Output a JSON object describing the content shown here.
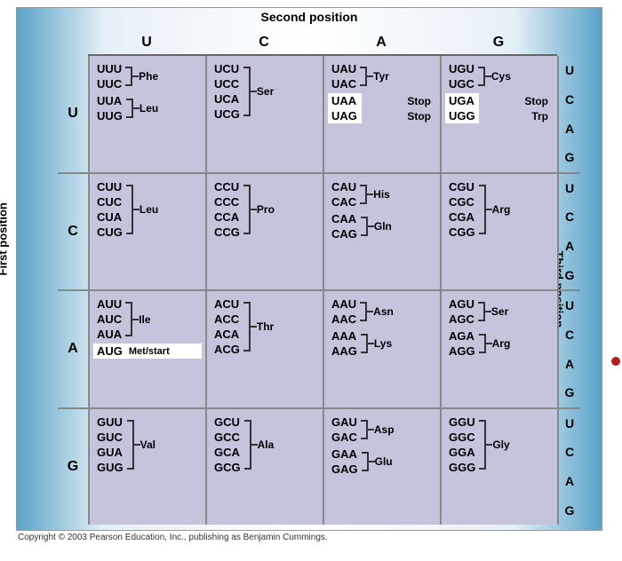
{
  "labels": {
    "top": "Second position",
    "left": "First position",
    "right": "Third position",
    "cols": [
      "U",
      "C",
      "A",
      "G"
    ],
    "rows": [
      "U",
      "C",
      "A",
      "G"
    ],
    "third": [
      "U",
      "C",
      "A",
      "G"
    ]
  },
  "table": {
    "U": {
      "U": [
        {
          "codons": [
            "UUU",
            "UUC"
          ],
          "aa": "Phe",
          "hl": []
        },
        {
          "codons": [
            "UUA",
            "UUG"
          ],
          "aa": "Leu",
          "hl": []
        }
      ],
      "C": [
        {
          "codons": [
            "UCU",
            "UCC",
            "UCA",
            "UCG"
          ],
          "aa": "Ser",
          "hl": []
        }
      ],
      "A": [
        {
          "codons": [
            "UAU",
            "UAC"
          ],
          "aa": "Tyr",
          "hl": []
        },
        {
          "special": [
            {
              "codon": "UAA",
              "aa": "Stop",
              "hl": true
            },
            {
              "codon": "UAG",
              "aa": "Stop",
              "hl": true
            }
          ]
        }
      ],
      "G": [
        {
          "codons": [
            "UGU",
            "UGC"
          ],
          "aa": "Cys",
          "hl": []
        },
        {
          "special": [
            {
              "codon": "UGA",
              "aa": "Stop",
              "hl": true
            },
            {
              "codon": "UGG",
              "aa": "Trp",
              "hl": true
            }
          ]
        }
      ]
    },
    "C": {
      "U": [
        {
          "codons": [
            "CUU",
            "CUC",
            "CUA",
            "CUG"
          ],
          "aa": "Leu",
          "hl": []
        }
      ],
      "C": [
        {
          "codons": [
            "CCU",
            "CCC",
            "CCA",
            "CCG"
          ],
          "aa": "Pro",
          "hl": []
        }
      ],
      "A": [
        {
          "codons": [
            "CAU",
            "CAC"
          ],
          "aa": "His",
          "hl": []
        },
        {
          "codons": [
            "CAA",
            "CAG"
          ],
          "aa": "Gln",
          "hl": []
        }
      ],
      "G": [
        {
          "codons": [
            "CGU",
            "CGC",
            "CGA",
            "CGG"
          ],
          "aa": "Arg",
          "hl": []
        }
      ]
    },
    "A": {
      "U": [
        {
          "codons": [
            "AUU",
            "AUC",
            "AUA"
          ],
          "aa": "Ile",
          "hl": []
        },
        {
          "met": {
            "codon": "AUG",
            "aa": "Met/start"
          }
        }
      ],
      "C": [
        {
          "codons": [
            "ACU",
            "ACC",
            "ACA",
            "ACG"
          ],
          "aa": "Thr",
          "hl": []
        }
      ],
      "A": [
        {
          "codons": [
            "AAU",
            "AAC"
          ],
          "aa": "Asn",
          "hl": []
        },
        {
          "codons": [
            "AAA",
            "AAG"
          ],
          "aa": "Lys",
          "hl": []
        }
      ],
      "G": [
        {
          "codons": [
            "AGU",
            "AGC"
          ],
          "aa": "Ser",
          "hl": []
        },
        {
          "codons": [
            "AGA",
            "AGG"
          ],
          "aa": "Arg",
          "hl": []
        }
      ]
    },
    "G": {
      "U": [
        {
          "codons": [
            "GUU",
            "GUC",
            "GUA",
            "GUG"
          ],
          "aa": "Val",
          "hl": []
        }
      ],
      "C": [
        {
          "codons": [
            "GCU",
            "GCC",
            "GCA",
            "GCG"
          ],
          "aa": "Ala",
          "hl": []
        }
      ],
      "A": [
        {
          "codons": [
            "GAU",
            "GAC"
          ],
          "aa": "Asp",
          "hl": []
        },
        {
          "codons": [
            "GAA",
            "GAG"
          ],
          "aa": "Glu",
          "hl": []
        }
      ],
      "G": [
        {
          "codons": [
            "GGU",
            "GGC",
            "GGA",
            "GGG"
          ],
          "aa": "Gly",
          "hl": []
        }
      ]
    }
  },
  "colors": {
    "cell_bg": "#c4c4dd",
    "highlight_bg": "#ffffff",
    "grid_border": "#888888",
    "text": "#000000",
    "red_dot": "#b02020"
  },
  "copyright": "Copyright © 2003 Pearson Education, Inc., publishing as Benjamin Cummings."
}
